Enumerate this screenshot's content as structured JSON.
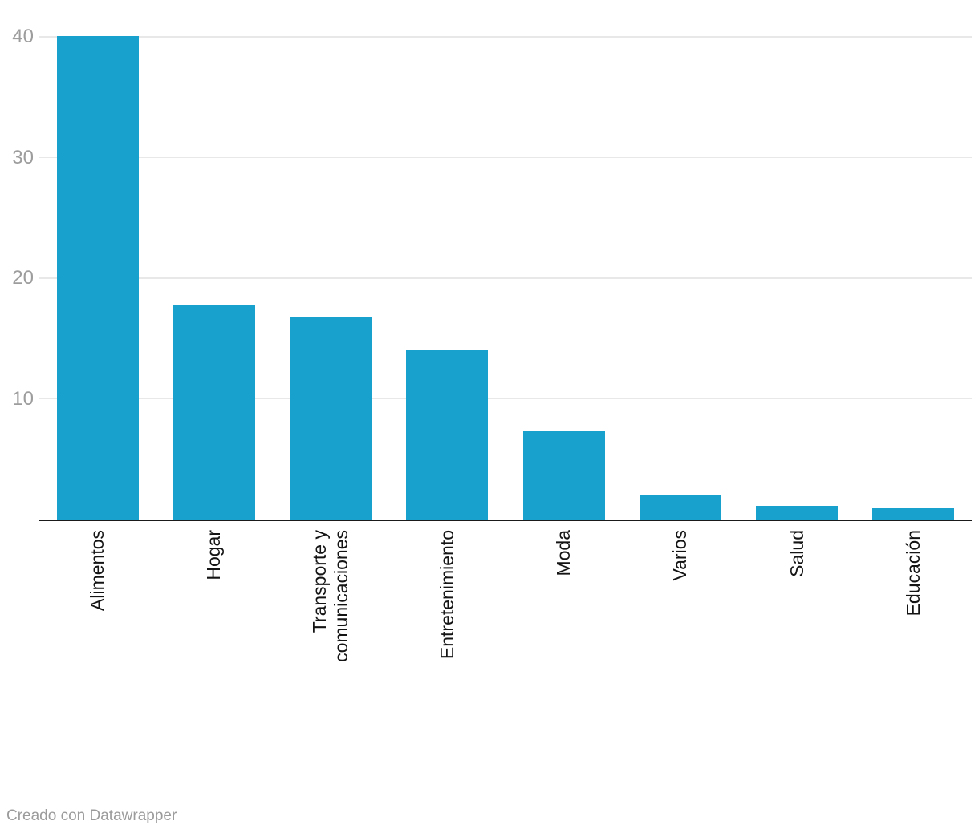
{
  "chart_data": {
    "type": "bar",
    "categories": [
      "Alimentos",
      "Hogar",
      "Transporte y\ncomunicaciones",
      "Entretenimiento",
      "Moda",
      "Varios",
      "Salud",
      "Educación"
    ],
    "category_slugs": [
      "alimentos",
      "hogar",
      "transporte-y-comunicaciones",
      "entretenimiento",
      "moda",
      "varios",
      "salud",
      "educacion"
    ],
    "values": [
      40.1,
      17.8,
      16.8,
      14.1,
      7.4,
      2.0,
      1.1,
      0.9
    ],
    "title": "",
    "xlabel": "",
    "ylabel": "",
    "ylim": [
      0,
      43
    ],
    "yticks": [
      10,
      20,
      30,
      40
    ],
    "grid": true,
    "legend": "none",
    "bar_color": "#18a1cd",
    "axis_line_color": "#1a1a1a",
    "gridline_color": "#e8e8e8",
    "y_tick_label_color": "#9d9d9d",
    "x_label_color": "#141414"
  },
  "footer": {
    "credit": "Creado con Datawrapper"
  }
}
